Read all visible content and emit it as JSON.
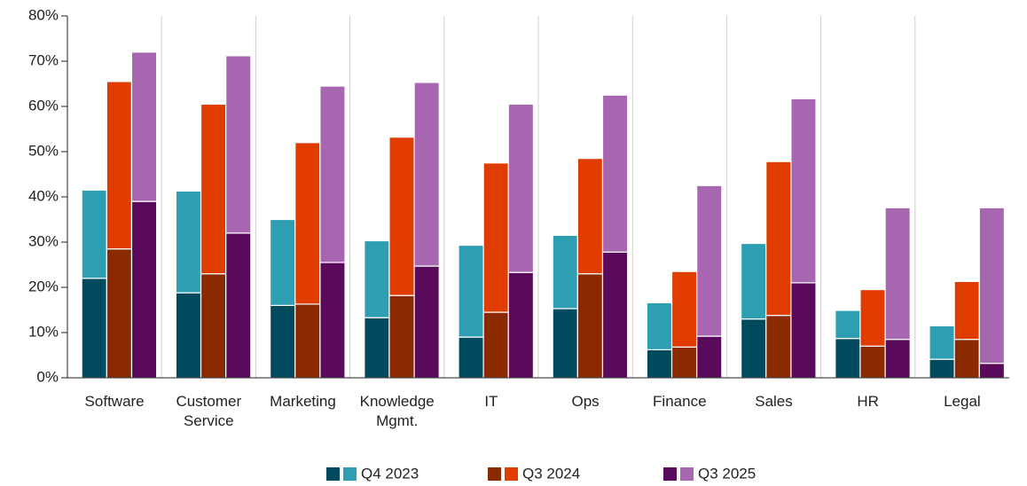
{
  "chart_data": {
    "type": "stacked-grouped-bar",
    "categories": [
      "Software",
      "Customer Service",
      "Marketing",
      "Knowledge Mgmt.",
      "IT",
      "Ops",
      "Finance",
      "Sales",
      "HR",
      "Legal"
    ],
    "series": [
      {
        "name": "Q4 2023",
        "colors": [
          "#004a5e",
          "#2e9fb3"
        ],
        "values": [
          [
            22,
            19.5
          ],
          [
            18.8,
            22.5
          ],
          [
            16,
            19
          ],
          [
            13.3,
            17
          ],
          [
            9,
            20.3
          ],
          [
            15.3,
            16.2
          ],
          [
            6.2,
            10.4
          ],
          [
            13,
            16.7
          ],
          [
            8.7,
            6.2
          ],
          [
            4.1,
            7.4
          ]
        ]
      },
      {
        "name": "Q3 2024",
        "colors": [
          "#8b2a00",
          "#e03c00"
        ],
        "values": [
          [
            28.5,
            37
          ],
          [
            23,
            37.5
          ],
          [
            16.3,
            35.7
          ],
          [
            18.2,
            35
          ],
          [
            14.5,
            33
          ],
          [
            23,
            25.5
          ],
          [
            6.8,
            16.7
          ],
          [
            13.8,
            34
          ],
          [
            7,
            12.5
          ],
          [
            8.5,
            12.8
          ]
        ]
      },
      {
        "name": "Q3 2025",
        "colors": [
          "#5a0a5a",
          "#a666b0"
        ],
        "values": [
          [
            39,
            33
          ],
          [
            32,
            39.2
          ],
          [
            25.5,
            39
          ],
          [
            24.7,
            40.6
          ],
          [
            23.3,
            37.2
          ],
          [
            27.8,
            34.7
          ],
          [
            9.2,
            33.3
          ],
          [
            21,
            40.7
          ],
          [
            8.5,
            29.1
          ],
          [
            3.2,
            34.4
          ]
        ]
      }
    ],
    "ylim": [
      0,
      80
    ],
    "yticks": [
      {
        "value": 0,
        "label": "0%"
      },
      {
        "value": 10,
        "label": "10%"
      },
      {
        "value": 20,
        "label": "20%"
      },
      {
        "value": 30,
        "label": "30%"
      },
      {
        "value": 40,
        "label": "40%"
      },
      {
        "value": 50,
        "label": "50%"
      },
      {
        "value": 60,
        "label": "60%"
      },
      {
        "value": 70,
        "label": "70%"
      },
      {
        "value": 80,
        "label": "80%"
      }
    ],
    "grid": false,
    "legend": "bottom"
  }
}
